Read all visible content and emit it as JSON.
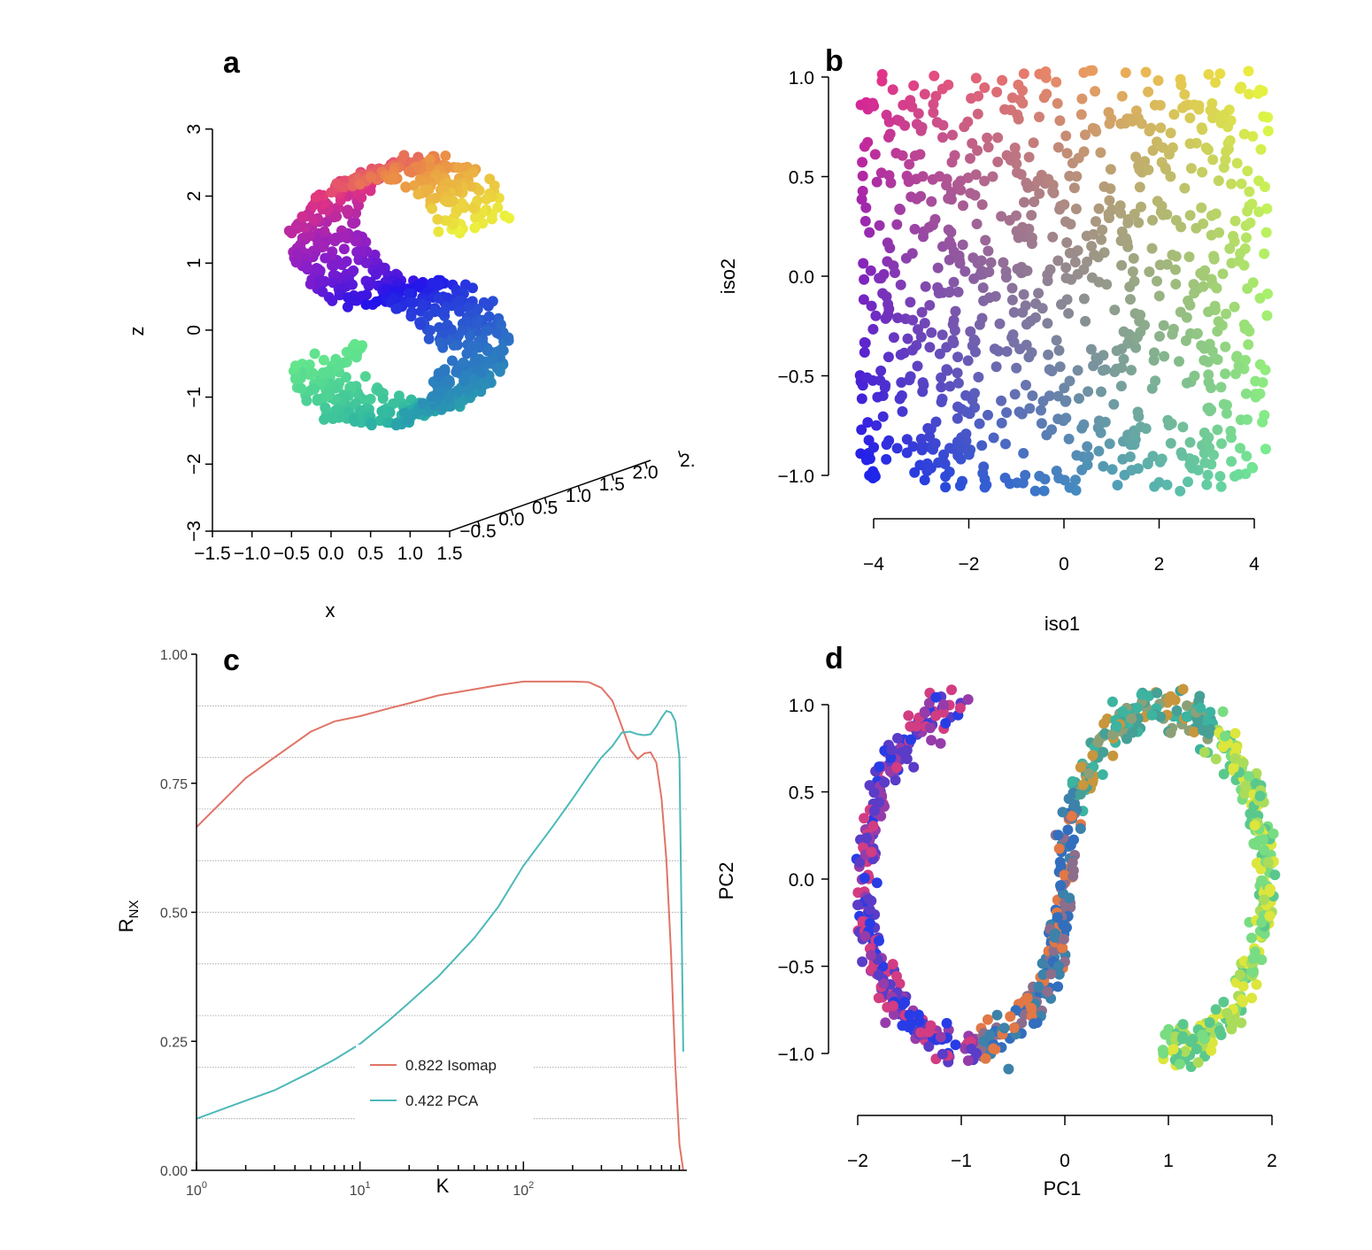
{
  "chart_data": [
    {
      "panel": "a",
      "type": "scatter",
      "projection": "3d",
      "xlabel": "x",
      "ylabel": "",
      "zlabel": "z",
      "x_ticks": [
        "−1.5",
        "−1.0",
        "−0.5",
        "0.0",
        "0.5",
        "1.0",
        "1.5"
      ],
      "y_ticks": [
        "−0.5",
        "0.0",
        "0.5",
        "1.0",
        "1.5",
        "2.0",
        "2."
      ],
      "z_ticks": [
        "−3",
        "−2",
        "−1",
        "0",
        "1",
        "2",
        "3"
      ],
      "xlim": [
        -1.5,
        1.5
      ],
      "ylim": [
        -0.5,
        2.0
      ],
      "zlim": [
        -3,
        3
      ],
      "shape": "S-curve",
      "n_points": 900,
      "color_scale": "position along curve (rainbow)",
      "grid": false
    },
    {
      "panel": "b",
      "type": "scatter",
      "xlabel": "iso1",
      "ylabel": "iso2",
      "x_ticks": [
        "−4",
        "−2",
        "0",
        "2",
        "4"
      ],
      "y_ticks": [
        "−1.0",
        "−0.5",
        "0.0",
        "0.5",
        "1.0"
      ],
      "xlim": [
        -4.3,
        4.3
      ],
      "ylim": [
        -1.1,
        1.05
      ],
      "n_points": 900,
      "grid": false
    },
    {
      "panel": "c",
      "type": "line",
      "xlabel": "K",
      "ylabel_main": "R",
      "ylabel_sub": "NX",
      "xscale": "log",
      "x_ticks": [
        {
          "base": "10",
          "exp": "0"
        },
        {
          "base": "10",
          "exp": "1"
        },
        {
          "base": "10",
          "exp": "2"
        }
      ],
      "y_ticks": [
        "0.00",
        "0.25",
        "0.50",
        "0.75",
        "1.00"
      ],
      "xlim": [
        1,
        999
      ],
      "ylim": [
        0,
        1.0
      ],
      "grid": true,
      "legend_position": "bottom-center",
      "series": [
        {
          "name": "0.822 Isomap",
          "color": "#e07467",
          "x": [
            1,
            2,
            3,
            5,
            7,
            10,
            15,
            20,
            30,
            50,
            70,
            100,
            150,
            200,
            250,
            300,
            350,
            400,
            450,
            500,
            550,
            600,
            650,
            700,
            750,
            800,
            850,
            900,
            950
          ],
          "y": [
            0.665,
            0.76,
            0.8,
            0.85,
            0.87,
            0.88,
            0.895,
            0.905,
            0.92,
            0.932,
            0.94,
            0.947,
            0.947,
            0.947,
            0.946,
            0.935,
            0.91,
            0.86,
            0.815,
            0.797,
            0.808,
            0.81,
            0.79,
            0.72,
            0.6,
            0.42,
            0.2,
            0.05,
            0.0
          ]
        },
        {
          "name": "0.422 PCA",
          "color": "#4db8b8",
          "x": [
            1,
            2,
            3,
            5,
            7,
            10,
            15,
            20,
            30,
            50,
            70,
            100,
            150,
            200,
            250,
            300,
            350,
            400,
            450,
            500,
            550,
            600,
            650,
            700,
            750,
            800,
            850,
            900,
            950
          ],
          "y": [
            0.1,
            0.135,
            0.155,
            0.19,
            0.215,
            0.245,
            0.29,
            0.325,
            0.375,
            0.45,
            0.51,
            0.59,
            0.665,
            0.72,
            0.765,
            0.8,
            0.822,
            0.848,
            0.85,
            0.845,
            0.843,
            0.845,
            0.86,
            0.877,
            0.89,
            0.887,
            0.87,
            0.8,
            0.23
          ]
        }
      ]
    },
    {
      "panel": "d",
      "type": "scatter",
      "xlabel": "PC1",
      "ylabel": "PC2",
      "x_ticks": [
        "−2",
        "−1",
        "0",
        "1",
        "2"
      ],
      "y_ticks": [
        "−1.0",
        "−0.5",
        "0.0",
        "0.5",
        "1.0"
      ],
      "xlim": [
        -2.0,
        2.0
      ],
      "ylim": [
        -1.0,
        1.0
      ],
      "shape": "S-curve (2D projection)",
      "n_points": 900,
      "grid": false
    }
  ],
  "panels": {
    "a": {
      "letter": "a"
    },
    "b": {
      "letter": "b"
    },
    "c": {
      "letter": "c"
    },
    "d": {
      "letter": "d"
    }
  }
}
